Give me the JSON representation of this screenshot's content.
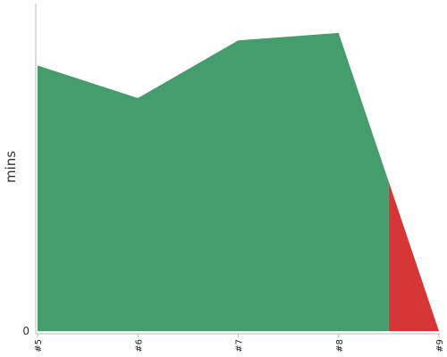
{
  "chart_data": {
    "type": "area",
    "title": "",
    "xlabel": "",
    "ylabel": "mins",
    "categories": [
      "#5",
      "#6",
      "#7",
      "#8",
      "#9"
    ],
    "x": [
      5,
      6,
      7,
      8,
      9
    ],
    "y": [
      74.2,
      65.1,
      81.2,
      83.3,
      0
    ],
    "ylim": [
      0,
      90
    ],
    "y_ticks": [
      {
        "value": 0,
        "label": "0"
      }
    ],
    "split_at": 8.5,
    "series": [
      {
        "segment": "before-split",
        "color": "#459c6c"
      },
      {
        "segment": "after-split",
        "color": "#d73636"
      }
    ],
    "grid": false,
    "legend": "none"
  }
}
